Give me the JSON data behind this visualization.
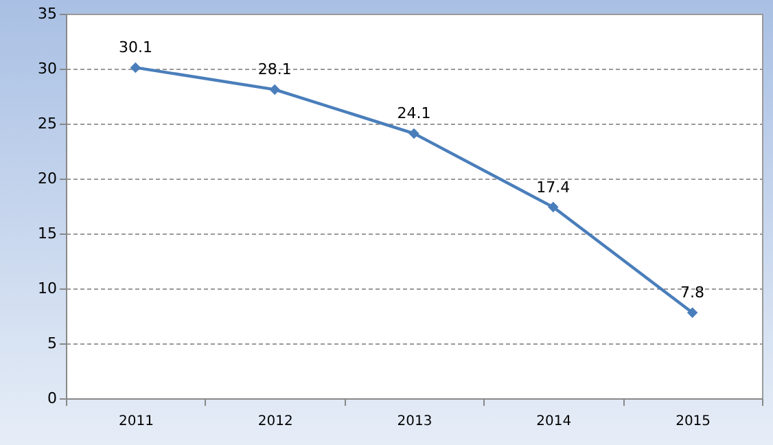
{
  "chart_data": {
    "type": "line",
    "categories": [
      "2011",
      "2012",
      "2013",
      "2014",
      "2015"
    ],
    "series": [
      {
        "color": "#4a7ebb",
        "values": [
          30.1,
          28.1,
          24.1,
          17.4,
          7.8
        ]
      }
    ],
    "ylim": [
      0,
      35
    ],
    "yticks": [
      0,
      5,
      10,
      15,
      20,
      25,
      30,
      35
    ],
    "grid": "y",
    "marker": "diamond",
    "line_style": "solid",
    "data_labels": true
  }
}
